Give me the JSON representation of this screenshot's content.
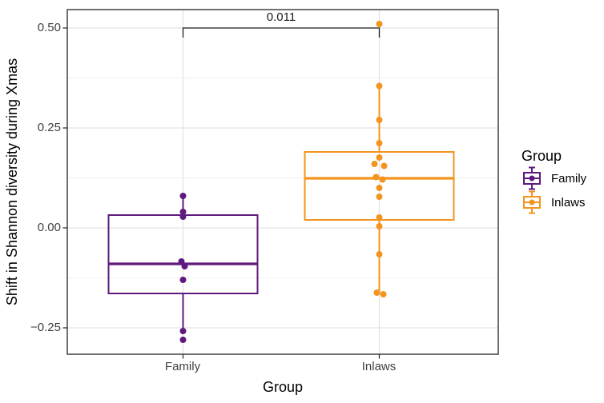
{
  "chart_data": {
    "type": "boxplot",
    "title": "",
    "xlabel": "Group",
    "ylabel": "Shift in Shannon diversity during Xmas",
    "categories": [
      "Family",
      "Inlaws"
    ],
    "ylim": [
      -0.316,
      0.546
    ],
    "yticks": [
      0.5,
      0.25,
      0.0,
      -0.25
    ],
    "y_tick_labels": [
      "0.50",
      "0.25",
      "0.00",
      "−0.25"
    ],
    "minor_gridlines": [
      0.375,
      0.125,
      -0.125
    ],
    "grid": true,
    "legend_position": "right",
    "legend": {
      "title": "Group"
    },
    "significance": {
      "label": "0.011",
      "between": [
        "Family",
        "Inlaws"
      ],
      "bar_y": 0.5
    },
    "style": {
      "grid_major": "#e4e4e4",
      "grid_minor": "#f1f1f1",
      "panel_border": "#343434",
      "bracket": "#1f1f1f",
      "tick": "#333333"
    },
    "groups": [
      {
        "name": "Family",
        "color": "#5E1A7E",
        "stats": {
          "whisker_low": -0.25,
          "q1": -0.164,
          "median": -0.09,
          "q3": 0.032,
          "whisker_high": 0.08
        },
        "points": [
          [
            0.08,
            0
          ],
          [
            0.04,
            0
          ],
          [
            0.028,
            0
          ],
          [
            -0.084,
            -2
          ],
          [
            -0.096,
            2
          ],
          [
            -0.13,
            0
          ],
          [
            -0.258,
            0
          ],
          [
            -0.28,
            0
          ]
        ]
      },
      {
        "name": "Inlaws",
        "color": "#F3941E",
        "stats": {
          "whisker_low": -0.164,
          "q1": 0.02,
          "median": 0.124,
          "q3": 0.19,
          "whisker_high": 0.355
        },
        "points": [
          [
            0.51,
            0
          ],
          [
            0.355,
            0
          ],
          [
            0.27,
            0
          ],
          [
            0.212,
            0
          ],
          [
            0.176,
            0
          ],
          [
            0.16,
            -6
          ],
          [
            0.155,
            6
          ],
          [
            0.127,
            -4
          ],
          [
            0.121,
            4
          ],
          [
            0.1,
            0
          ],
          [
            0.078,
            0
          ],
          [
            0.026,
            0
          ],
          [
            0.004,
            0
          ],
          [
            -0.066,
            0
          ],
          [
            -0.162,
            -3
          ],
          [
            -0.166,
            5
          ]
        ]
      }
    ]
  }
}
